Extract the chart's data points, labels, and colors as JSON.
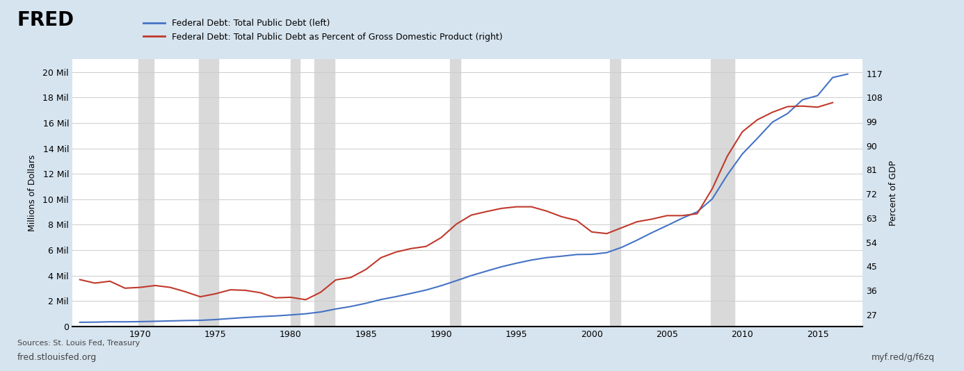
{
  "title_line1": "Federal Debt: Total Public Debt (left)",
  "title_line2": "Federal Debt: Total Public Debt as Percent of Gross Domestic Product (right)",
  "ylabel_left": "Millions of Dollars",
  "ylabel_right": "Percent of GDP",
  "xlabel": "",
  "source_text": "Sources: St. Louis Fed, Treasury\nfred.stlouisfed.org",
  "url_text": "myf.red/g/f6zq",
  "background_color": "#d6e4ef",
  "plot_bg_color": "#ffffff",
  "blue_color": "#4472c4",
  "red_color": "#c0392b",
  "grid_color": "#cccccc",
  "recession_color": "#d9d9d9",
  "recession_bands": [
    [
      1969.9,
      1970.9
    ],
    [
      1973.9,
      1975.2
    ],
    [
      1980.0,
      1980.6
    ],
    [
      1981.6,
      1982.9
    ],
    [
      1990.6,
      1991.3
    ],
    [
      2001.2,
      2001.9
    ],
    [
      2007.9,
      2009.5
    ]
  ],
  "xlim": [
    1965.5,
    2018.0
  ],
  "ylim_left": [
    0,
    21000000
  ],
  "ylim_right": [
    22.5,
    122.25
  ],
  "yticks_left": [
    0,
    2000000,
    4000000,
    6000000,
    8000000,
    10000000,
    12000000,
    14000000,
    16000000,
    18000000,
    20000000
  ],
  "ytick_labels_left": [
    "0",
    "2 Mil",
    "4 Mil",
    "6 Mil",
    "8 Mil",
    "10 Mil",
    "12 Mil",
    "14 Mil",
    "16 Mil",
    "18 Mil",
    "20 Mil"
  ],
  "yticks_right": [
    27,
    36,
    45,
    54,
    63,
    72,
    81,
    90,
    99,
    108,
    117
  ],
  "xticks": [
    1970,
    1975,
    1980,
    1985,
    1990,
    1995,
    2000,
    2005,
    2010,
    2015
  ],
  "blue_data": {
    "years": [
      1966,
      1967,
      1968,
      1969,
      1970,
      1971,
      1972,
      1973,
      1974,
      1975,
      1976,
      1977,
      1978,
      1979,
      1980,
      1981,
      1982,
      1983,
      1984,
      1985,
      1986,
      1987,
      1988,
      1989,
      1990,
      1991,
      1992,
      1993,
      1994,
      1995,
      1996,
      1997,
      1998,
      1999,
      2000,
      2001,
      2002,
      2003,
      2004,
      2005,
      2006,
      2007,
      2008,
      2009,
      2010,
      2011,
      2012,
      2013,
      2014,
      2015,
      2016,
      2017
    ],
    "values": [
      328500,
      340700,
      368700,
      365800,
      380900,
      408200,
      435900,
      466300,
      483900,
      541900,
      628900,
      706400,
      776600,
      829500,
      907700,
      997900,
      1142000,
      1377200,
      1572300,
      1823100,
      2120600,
      2345600,
      2601300,
      2867500,
      3206300,
      3598200,
      4001800,
      4351200,
      4692700,
      4973900,
      5224800,
      5413100,
      5526200,
      5656300,
      5674200,
      5807500,
      6228200,
      6783200,
      7379100,
      7932700,
      8506973,
      9007653,
      10024725,
      11909829,
      13561623,
      14790340,
      16066241,
      16738184,
      17824071,
      18150617,
      19573445,
      19846000
    ],
    "color": "#4472c4"
  },
  "red_data": {
    "years": [
      1966,
      1967,
      1968,
      1969,
      1970,
      1971,
      1972,
      1973,
      1974,
      1975,
      1976,
      1977,
      1978,
      1979,
      1980,
      1981,
      1982,
      1983,
      1984,
      1985,
      1986,
      1987,
      1988,
      1989,
      1990,
      1991,
      1992,
      1993,
      1994,
      1995,
      1996,
      1997,
      1998,
      1999,
      2000,
      2001,
      2002,
      2003,
      2004,
      2005,
      2006,
      2007,
      2008,
      2009,
      2010,
      2011,
      2012,
      2013,
      2014,
      2015,
      2016
    ],
    "values": [
      40.0,
      38.7,
      39.4,
      36.8,
      37.1,
      37.8,
      37.1,
      35.5,
      33.6,
      34.7,
      36.2,
      36.0,
      35.1,
      33.2,
      33.4,
      32.5,
      35.3,
      39.9,
      40.8,
      43.8,
      48.2,
      50.3,
      51.6,
      52.4,
      55.7,
      60.7,
      64.1,
      65.4,
      66.6,
      67.2,
      67.2,
      65.6,
      63.5,
      62.1,
      57.8,
      57.2,
      59.4,
      61.6,
      62.6,
      63.9,
      63.9,
      64.6,
      73.9,
      86.1,
      95.2,
      99.7,
      102.5,
      104.6,
      104.8,
      104.4,
      106.1
    ],
    "color": "#c0504d"
  }
}
